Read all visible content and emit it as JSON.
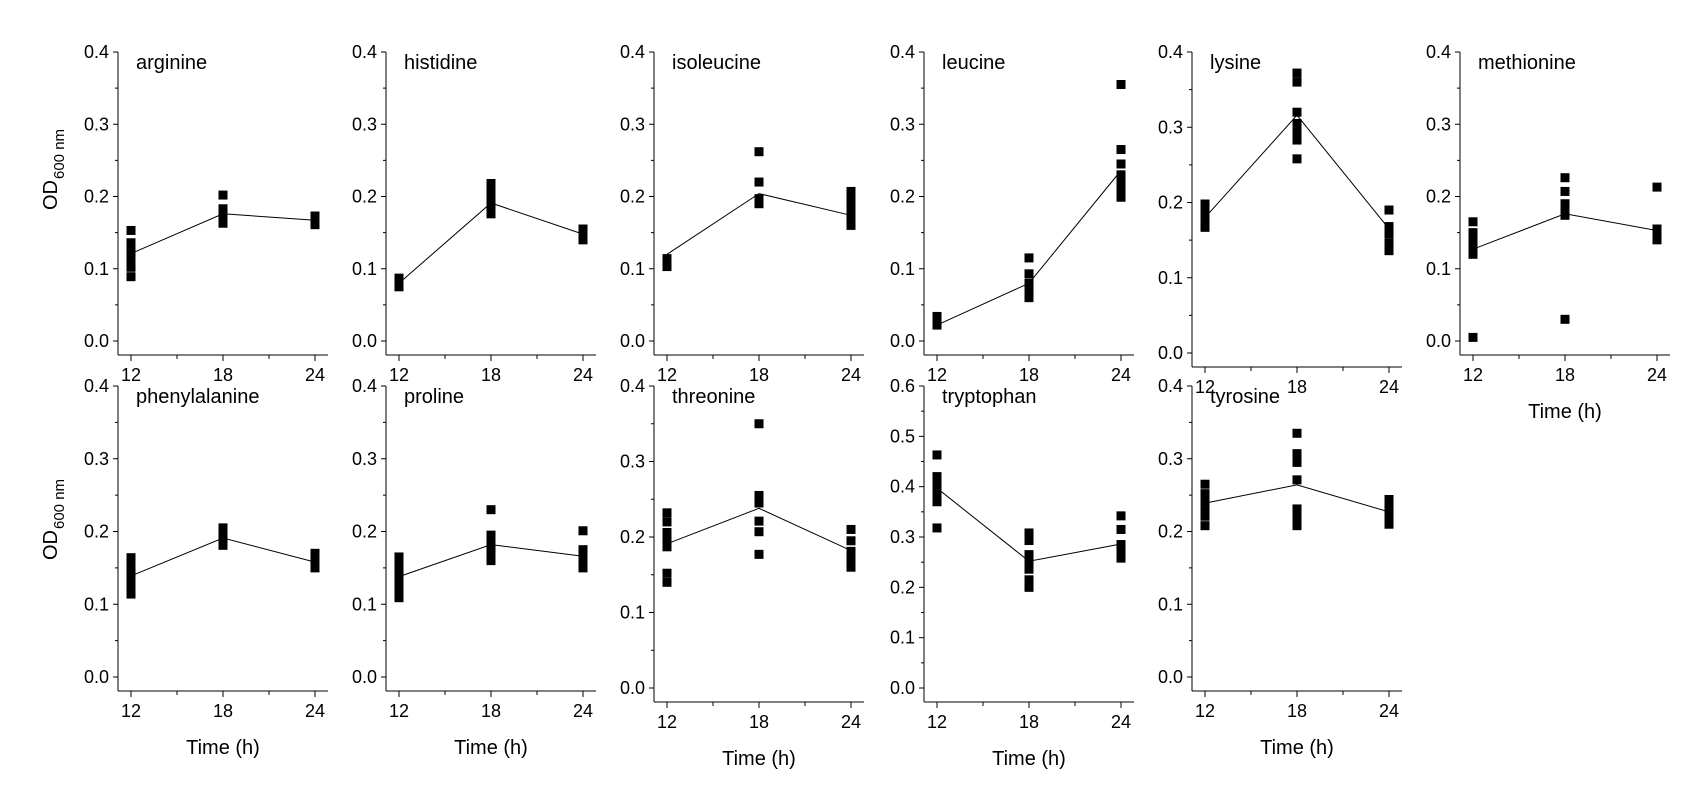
{
  "figure": {
    "ylabel_main": "OD",
    "ylabel_sub": "600 nm",
    "xlabel": "Time (h)"
  },
  "chart_data": [
    {
      "type": "scatter",
      "title": "arginine",
      "xlabel": "",
      "ylabel": "OD600 nm",
      "x_ticks": [
        12,
        18,
        24
      ],
      "y_ticks": [
        "0.0",
        "0.1",
        "0.2",
        "0.3",
        "0.4"
      ],
      "ylim": [
        0,
        0.4
      ],
      "mean_line": [
        [
          12,
          0.121
        ],
        [
          18,
          0.176
        ],
        [
          24,
          0.167
        ]
      ],
      "points": [
        {
          "x": 12,
          "values": [
            0.153,
            0.136,
            0.128,
            0.121,
            0.115,
            0.109,
            0.102,
            0.089
          ]
        },
        {
          "x": 18,
          "values": [
            0.202,
            0.183,
            0.177,
            0.172,
            0.167,
            0.163
          ]
        },
        {
          "x": 24,
          "values": [
            0.173,
            0.168,
            0.165,
            0.161
          ]
        }
      ]
    },
    {
      "type": "scatter",
      "title": "histidine",
      "xlabel": "",
      "ylabel": "",
      "x_ticks": [
        12,
        18,
        24
      ],
      "y_ticks": [
        "0.0",
        "0.1",
        "0.2",
        "0.3",
        "0.4"
      ],
      "ylim": [
        0,
        0.4
      ],
      "mean_line": [
        [
          12,
          0.08
        ],
        [
          18,
          0.191
        ],
        [
          24,
          0.148
        ]
      ],
      "points": [
        {
          "x": 12,
          "values": [
            0.087,
            0.082,
            0.078,
            0.075
          ]
        },
        {
          "x": 18,
          "values": [
            0.218,
            0.208,
            0.199,
            0.19,
            0.183,
            0.176
          ]
        },
        {
          "x": 24,
          "values": [
            0.155,
            0.149,
            0.144,
            0.14
          ]
        }
      ]
    },
    {
      "type": "scatter",
      "title": "isoleucine",
      "xlabel": "",
      "ylabel": "",
      "x_ticks": [
        12,
        18,
        24
      ],
      "y_ticks": [
        "0.0",
        "0.1",
        "0.2",
        "0.3",
        "0.4"
      ],
      "ylim": [
        0,
        0.4
      ],
      "mean_line": [
        [
          12,
          0.12
        ],
        [
          18,
          0.204
        ],
        [
          24,
          0.174
        ]
      ],
      "points": [
        {
          "x": 12,
          "values": [
            0.114,
            0.108,
            0.103
          ]
        },
        {
          "x": 18,
          "values": [
            0.262,
            0.22,
            0.197,
            0.19
          ]
        },
        {
          "x": 24,
          "values": [
            0.207,
            0.196,
            0.185,
            0.177,
            0.169,
            0.16
          ]
        }
      ]
    },
    {
      "type": "scatter",
      "title": "leucine",
      "xlabel": "",
      "ylabel": "",
      "x_ticks": [
        12,
        18,
        24
      ],
      "y_ticks": [
        "0.0",
        "0.1",
        "0.2",
        "0.3",
        "0.4"
      ],
      "ylim": [
        0,
        0.4
      ],
      "mean_line": [
        [
          12,
          0.022
        ],
        [
          18,
          0.08
        ],
        [
          24,
          0.236
        ]
      ],
      "points": [
        {
          "x": 12,
          "values": [
            0.034,
            0.027,
            0.022
          ]
        },
        {
          "x": 18,
          "values": [
            0.115,
            0.093,
            0.08,
            0.069,
            0.06
          ]
        },
        {
          "x": 24,
          "values": [
            0.355,
            0.265,
            0.245,
            0.23,
            0.218,
            0.208,
            0.199
          ]
        }
      ]
    },
    {
      "type": "scatter",
      "title": "lysine",
      "xlabel": "",
      "ylabel": "",
      "x_ticks": [
        12,
        18,
        24
      ],
      "y_ticks": [
        "0.0",
        "0.1",
        "0.2",
        "0.3",
        "0.4"
      ],
      "ylim": [
        0,
        0.4
      ],
      "mean_line": [
        [
          12,
          0.18
        ],
        [
          18,
          0.316
        ],
        [
          24,
          0.165
        ]
      ],
      "points": [
        {
          "x": 12,
          "values": [
            0.198,
            0.189,
            0.181,
            0.174,
            0.167
          ]
        },
        {
          "x": 18,
          "values": [
            0.372,
            0.36,
            0.32,
            0.305,
            0.293,
            0.283,
            0.258
          ]
        },
        {
          "x": 24,
          "values": [
            0.19,
            0.168,
            0.158,
            0.146,
            0.136
          ]
        }
      ]
    },
    {
      "type": "scatter",
      "title": "methionine",
      "xlabel": "Time (h)",
      "ylabel": "",
      "x_ticks": [
        12,
        18,
        24
      ],
      "y_ticks": [
        "0.0",
        "0.1",
        "0.2",
        "0.3",
        "0.4"
      ],
      "ylim": [
        0,
        0.4
      ],
      "mean_line": [
        [
          12,
          0.127
        ],
        [
          18,
          0.176
        ],
        [
          24,
          0.153
        ]
      ],
      "points": [
        {
          "x": 12,
          "values": [
            0.165,
            0.15,
            0.143,
            0.136,
            0.128,
            0.12,
            0.005
          ]
        },
        {
          "x": 18,
          "values": [
            0.226,
            0.207,
            0.19,
            0.18,
            0.174,
            0.03
          ]
        },
        {
          "x": 24,
          "values": [
            0.213,
            0.155,
            0.148,
            0.14
          ]
        }
      ]
    },
    {
      "type": "scatter",
      "title": "phenylalanine",
      "xlabel": "Time (h)",
      "ylabel": "OD600 nm",
      "x_ticks": [
        12,
        18,
        24
      ],
      "y_ticks": [
        "0.0",
        "0.1",
        "0.2",
        "0.3",
        "0.4"
      ],
      "ylim": [
        0,
        0.4
      ],
      "mean_line": [
        [
          12,
          0.139
        ],
        [
          18,
          0.191
        ],
        [
          24,
          0.158
        ]
      ],
      "points": [
        {
          "x": 12,
          "values": [
            0.164,
            0.157,
            0.15,
            0.143,
            0.137,
            0.131,
            0.125,
            0.114
          ]
        },
        {
          "x": 18,
          "values": [
            0.205,
            0.199,
            0.193,
            0.187,
            0.181
          ]
        },
        {
          "x": 24,
          "values": [
            0.17,
            0.163,
            0.157,
            0.15
          ]
        }
      ]
    },
    {
      "type": "scatter",
      "title": "proline",
      "xlabel": "Time (h)",
      "ylabel": "",
      "x_ticks": [
        12,
        18,
        24
      ],
      "y_ticks": [
        "0.0",
        "0.1",
        "0.2",
        "0.3",
        "0.4"
      ],
      "ylim": [
        0,
        0.4
      ],
      "mean_line": [
        [
          12,
          0.138
        ],
        [
          18,
          0.182
        ],
        [
          24,
          0.166
        ]
      ],
      "points": [
        {
          "x": 12,
          "values": [
            0.165,
            0.156,
            0.148,
            0.14,
            0.132,
            0.124,
            0.117,
            0.109
          ]
        },
        {
          "x": 18,
          "values": [
            0.23,
            0.195,
            0.185,
            0.177,
            0.168,
            0.16
          ]
        },
        {
          "x": 24,
          "values": [
            0.201,
            0.175,
            0.166,
            0.158,
            0.15
          ]
        }
      ]
    },
    {
      "type": "scatter",
      "title": "threonine",
      "xlabel": "Time (h)",
      "ylabel": "",
      "x_ticks": [
        12,
        18,
        24
      ],
      "y_ticks": [
        "0.0",
        "0.1",
        "0.2",
        "0.3",
        "0.4"
      ],
      "ylim": [
        0,
        0.4
      ],
      "mean_line": [
        [
          12,
          0.191
        ],
        [
          18,
          0.238
        ],
        [
          24,
          0.182
        ]
      ],
      "points": [
        {
          "x": 12,
          "values": [
            0.232,
            0.22,
            0.206,
            0.195,
            0.187,
            0.152,
            0.14
          ]
        },
        {
          "x": 18,
          "values": [
            0.35,
            0.255,
            0.245,
            0.221,
            0.207,
            0.177
          ]
        },
        {
          "x": 24,
          "values": [
            0.21,
            0.195,
            0.181,
            0.17,
            0.16
          ]
        }
      ]
    },
    {
      "type": "scatter",
      "title": "tryptophan",
      "xlabel": "Time (h)",
      "ylabel": "",
      "x_ticks": [
        12,
        18,
        24
      ],
      "y_ticks": [
        "0.0",
        "0.1",
        "0.2",
        "0.3",
        "0.4",
        "0.5",
        "0.6"
      ],
      "ylim": [
        0,
        0.6
      ],
      "mean_line": [
        [
          12,
          0.397
        ],
        [
          18,
          0.252
        ],
        [
          24,
          0.286
        ]
      ],
      "points": [
        {
          "x": 12,
          "values": [
            0.463,
            0.42,
            0.405,
            0.39,
            0.38,
            0.37,
            0.318
          ]
        },
        {
          "x": 18,
          "values": [
            0.308,
            0.293,
            0.265,
            0.25,
            0.236,
            0.215,
            0.2
          ]
        },
        {
          "x": 24,
          "values": [
            0.342,
            0.315,
            0.285,
            0.272,
            0.258
          ]
        }
      ]
    },
    {
      "type": "scatter",
      "title": "tyrosine",
      "xlabel": "Time (h)",
      "ylabel": "",
      "x_ticks": [
        12,
        18,
        24
      ],
      "y_ticks": [
        "0.0",
        "0.1",
        "0.2",
        "0.3",
        "0.4"
      ],
      "ylim": [
        0,
        0.4
      ],
      "mean_line": [
        [
          12,
          0.239
        ],
        [
          18,
          0.264
        ],
        [
          24,
          0.227
        ]
      ],
      "points": [
        {
          "x": 12,
          "values": [
            0.265,
            0.252,
            0.24,
            0.228,
            0.221,
            0.208
          ]
        },
        {
          "x": 18,
          "values": [
            0.335,
            0.307,
            0.295,
            0.271,
            0.231,
            0.219,
            0.208
          ]
        },
        {
          "x": 24,
          "values": [
            0.244,
            0.237,
            0.23,
            0.223,
            0.216,
            0.21
          ]
        }
      ]
    }
  ]
}
